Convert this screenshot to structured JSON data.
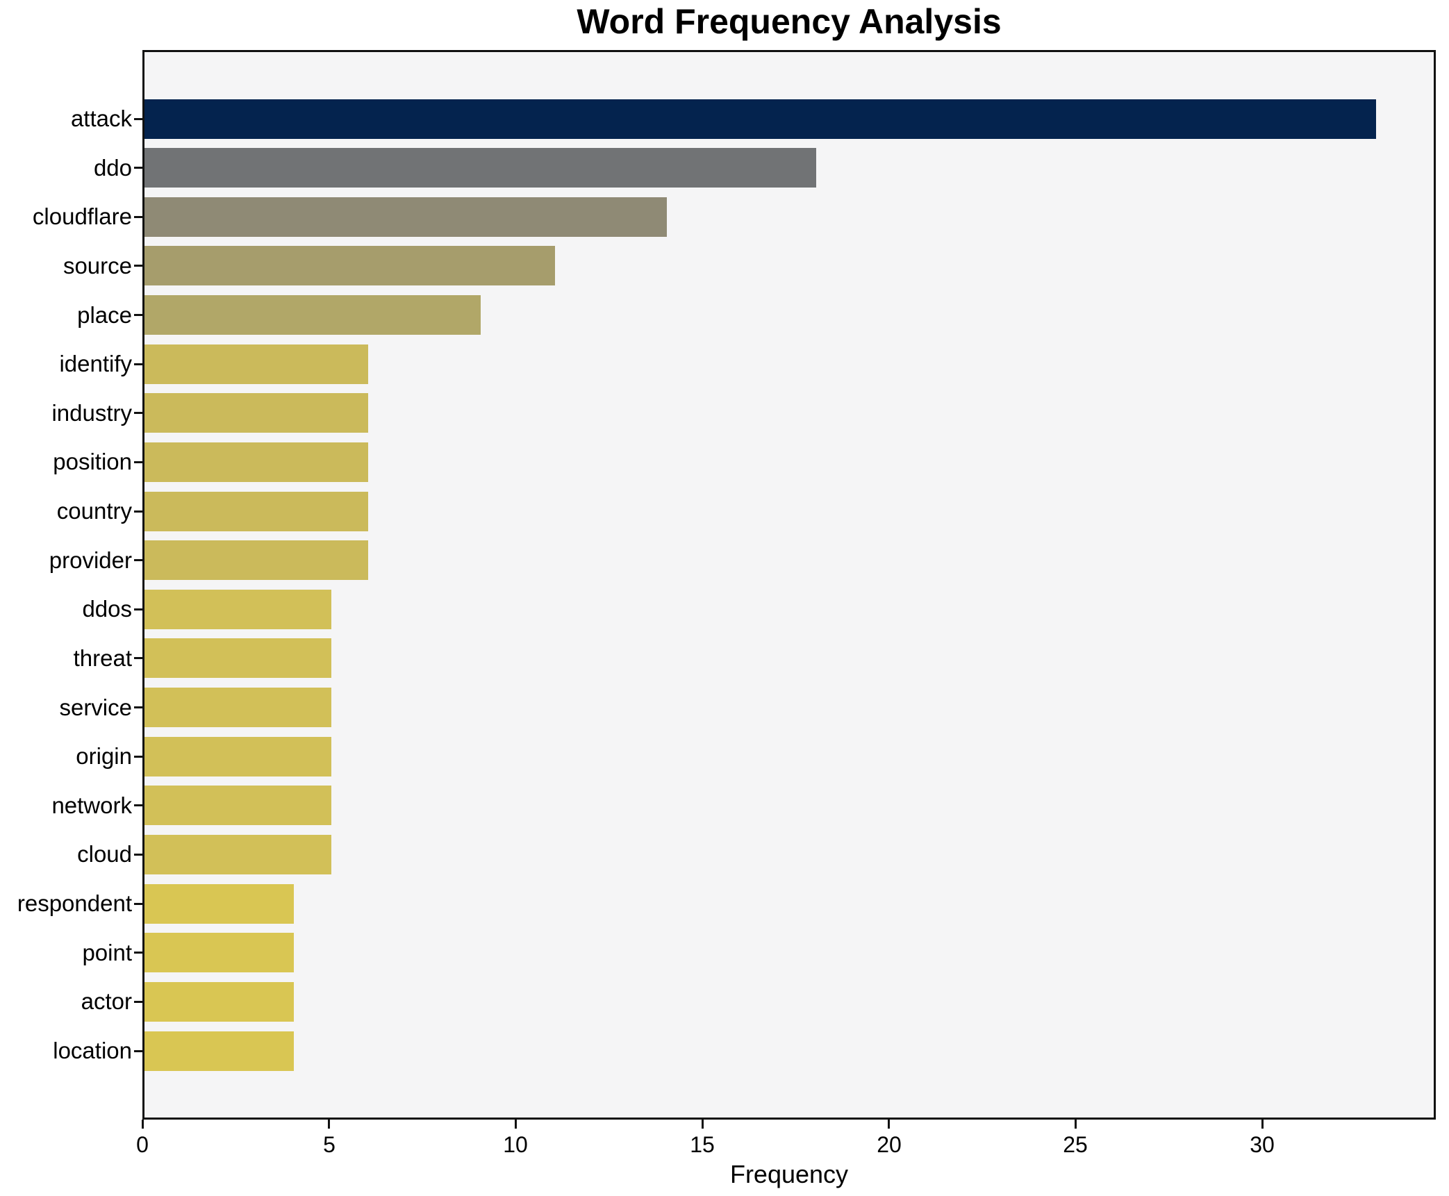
{
  "title": "Word Frequency Analysis",
  "chart_data": {
    "type": "bar",
    "orientation": "horizontal",
    "title": "Word Frequency Analysis",
    "xlabel": "Frequency",
    "ylabel": "",
    "categories": [
      "attack",
      "ddo",
      "cloudflare",
      "source",
      "place",
      "identify",
      "industry",
      "position",
      "country",
      "provider",
      "ddos",
      "threat",
      "service",
      "origin",
      "network",
      "cloud",
      "respondent",
      "point",
      "actor",
      "location"
    ],
    "values": [
      33,
      18,
      14,
      11,
      9,
      6,
      6,
      6,
      6,
      6,
      5,
      5,
      5,
      5,
      5,
      5,
      4,
      4,
      4,
      4
    ],
    "bar_colors": [
      "#04234e",
      "#717375",
      "#8f8a75",
      "#a69d6c",
      "#b1a768",
      "#cbba5b",
      "#cbba5b",
      "#cbba5b",
      "#cbba5b",
      "#cbba5b",
      "#d2c058",
      "#d2c058",
      "#d2c058",
      "#d2c058",
      "#d2c058",
      "#d2c058",
      "#d9c653",
      "#d9c653",
      "#d9c653",
      "#d9c653"
    ],
    "xlim": [
      0,
      34.65
    ],
    "xticks": [
      0,
      5,
      10,
      15,
      20,
      25,
      30
    ],
    "grid": false,
    "legend": null,
    "plot_bg_color": "#f5f5f6",
    "figure_bg_color": "#ffffff",
    "spine_color": "#111111"
  }
}
